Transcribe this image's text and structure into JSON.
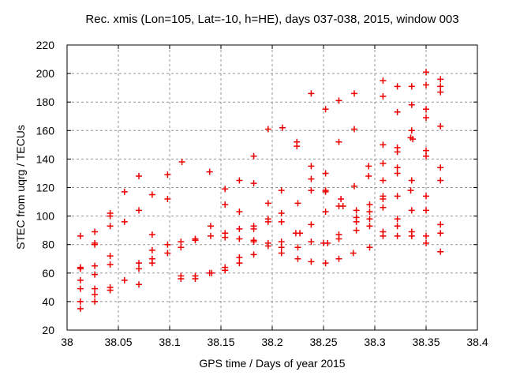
{
  "chart_data": {
    "type": "scatter",
    "title": "Rec. xmis (Lon=105, Lat=-10, h=HE), days 037-038, 2015, window 003",
    "xlabel": "GPS time / Days of year 2015",
    "ylabel": "STEC from uqrg / TECUs",
    "xlim": [
      38,
      38.4
    ],
    "ylim": [
      20,
      220
    ],
    "xtick_labels": [
      "38",
      "38.05",
      "38.1",
      "38.15",
      "38.2",
      "38.25",
      "38.3",
      "38.35",
      "38.4"
    ],
    "xtick_values": [
      38,
      38.05,
      38.1,
      38.15,
      38.2,
      38.25,
      38.3,
      38.35,
      38.4
    ],
    "ytick_labels": [
      "20",
      "40",
      "60",
      "80",
      "100",
      "120",
      "140",
      "160",
      "180",
      "200",
      "220"
    ],
    "ytick_values": [
      20,
      40,
      60,
      80,
      100,
      120,
      140,
      160,
      180,
      200,
      220
    ],
    "grid": true,
    "legend_position": "none",
    "marker_style": "plus",
    "colors": {
      "marker": "#ee0000",
      "grid": "#949494",
      "axis": "#000000",
      "text": "#000000",
      "background": "#ffffff"
    },
    "points": [
      [
        38.013,
        86
      ],
      [
        38.013,
        64
      ],
      [
        38.013,
        63
      ],
      [
        38.013,
        55
      ],
      [
        38.013,
        49
      ],
      [
        38.013,
        40
      ],
      [
        38.013,
        35
      ],
      [
        38.027,
        89
      ],
      [
        38.027,
        81
      ],
      [
        38.027,
        80
      ],
      [
        38.027,
        65
      ],
      [
        38.027,
        59
      ],
      [
        38.027,
        49
      ],
      [
        38.027,
        45
      ],
      [
        38.027,
        40
      ],
      [
        38.042,
        102
      ],
      [
        38.042,
        100
      ],
      [
        38.042,
        93
      ],
      [
        38.042,
        72
      ],
      [
        38.042,
        66
      ],
      [
        38.042,
        50
      ],
      [
        38.042,
        48
      ],
      [
        38.056,
        117
      ],
      [
        38.056,
        96
      ],
      [
        38.056,
        55
      ],
      [
        38.07,
        128
      ],
      [
        38.07,
        104
      ],
      [
        38.07,
        67
      ],
      [
        38.07,
        63
      ],
      [
        38.07,
        52
      ],
      [
        38.083,
        115
      ],
      [
        38.083,
        87
      ],
      [
        38.083,
        76
      ],
      [
        38.083,
        70
      ],
      [
        38.083,
        67
      ],
      [
        38.098,
        129
      ],
      [
        38.098,
        112
      ],
      [
        38.098,
        80
      ],
      [
        38.098,
        74
      ],
      [
        38.111,
        82
      ],
      [
        38.111,
        78
      ],
      [
        38.111,
        58
      ],
      [
        38.111,
        56
      ],
      [
        38.112,
        138
      ],
      [
        38.125,
        84
      ],
      [
        38.125,
        83
      ],
      [
        38.125,
        58
      ],
      [
        38.125,
        56
      ],
      [
        38.139,
        131
      ],
      [
        38.139,
        60
      ],
      [
        38.141,
        60
      ],
      [
        38.14,
        93
      ],
      [
        38.14,
        86
      ],
      [
        38.154,
        119
      ],
      [
        38.154,
        108
      ],
      [
        38.154,
        88
      ],
      [
        38.154,
        85
      ],
      [
        38.154,
        64
      ],
      [
        38.154,
        62
      ],
      [
        38.168,
        125
      ],
      [
        38.168,
        103
      ],
      [
        38.168,
        91
      ],
      [
        38.168,
        84
      ],
      [
        38.168,
        71
      ],
      [
        38.168,
        67
      ],
      [
        38.182,
        142
      ],
      [
        38.182,
        123
      ],
      [
        38.182,
        93
      ],
      [
        38.182,
        91
      ],
      [
        38.182,
        83
      ],
      [
        38.182,
        82
      ],
      [
        38.182,
        73
      ],
      [
        38.196,
        161
      ],
      [
        38.196,
        109
      ],
      [
        38.196,
        98
      ],
      [
        38.196,
        96
      ],
      [
        38.196,
        81
      ],
      [
        38.196,
        79
      ],
      [
        38.21,
        162
      ],
      [
        38.209,
        118
      ],
      [
        38.209,
        102
      ],
      [
        38.209,
        96
      ],
      [
        38.209,
        82
      ],
      [
        38.209,
        78
      ],
      [
        38.209,
        74
      ],
      [
        38.224,
        152
      ],
      [
        38.224,
        149
      ],
      [
        38.225,
        109
      ],
      [
        38.223,
        88
      ],
      [
        38.227,
        88
      ],
      [
        38.225,
        78
      ],
      [
        38.225,
        70
      ],
      [
        38.238,
        186
      ],
      [
        38.238,
        135
      ],
      [
        38.238,
        126
      ],
      [
        38.238,
        118
      ],
      [
        38.238,
        94
      ],
      [
        38.238,
        82
      ],
      [
        38.238,
        68
      ],
      [
        38.252,
        175
      ],
      [
        38.252,
        130
      ],
      [
        38.252,
        118
      ],
      [
        38.252,
        117
      ],
      [
        38.252,
        103
      ],
      [
        38.25,
        81
      ],
      [
        38.254,
        81
      ],
      [
        38.252,
        67
      ],
      [
        38.265,
        181
      ],
      [
        38.265,
        152
      ],
      [
        38.267,
        112
      ],
      [
        38.265,
        107
      ],
      [
        38.269,
        107
      ],
      [
        38.265,
        87
      ],
      [
        38.265,
        84
      ],
      [
        38.265,
        70
      ],
      [
        38.28,
        186
      ],
      [
        38.28,
        161
      ],
      [
        38.28,
        121
      ],
      [
        38.279,
        74
      ],
      [
        38.282,
        104
      ],
      [
        38.282,
        99
      ],
      [
        38.282,
        96
      ],
      [
        38.282,
        90
      ],
      [
        38.294,
        135
      ],
      [
        38.294,
        128
      ],
      [
        38.295,
        108
      ],
      [
        38.295,
        103
      ],
      [
        38.295,
        98
      ],
      [
        38.295,
        93
      ],
      [
        38.295,
        78
      ],
      [
        38.308,
        195
      ],
      [
        38.308,
        184
      ],
      [
        38.308,
        150
      ],
      [
        38.308,
        137
      ],
      [
        38.308,
        125
      ],
      [
        38.308,
        114
      ],
      [
        38.308,
        112
      ],
      [
        38.308,
        106
      ],
      [
        38.308,
        89
      ],
      [
        38.308,
        86
      ],
      [
        38.322,
        191
      ],
      [
        38.322,
        173
      ],
      [
        38.322,
        148
      ],
      [
        38.322,
        145
      ],
      [
        38.322,
        134
      ],
      [
        38.322,
        130
      ],
      [
        38.322,
        114
      ],
      [
        38.322,
        98
      ],
      [
        38.322,
        93
      ],
      [
        38.322,
        86
      ],
      [
        38.336,
        191
      ],
      [
        38.336,
        178
      ],
      [
        38.336,
        160
      ],
      [
        38.335,
        155
      ],
      [
        38.337,
        154
      ],
      [
        38.336,
        125
      ],
      [
        38.335,
        118
      ],
      [
        38.336,
        104
      ],
      [
        38.336,
        89
      ],
      [
        38.336,
        86
      ],
      [
        38.35,
        201
      ],
      [
        38.35,
        192
      ],
      [
        38.35,
        175
      ],
      [
        38.35,
        169
      ],
      [
        38.35,
        146
      ],
      [
        38.35,
        142
      ],
      [
        38.35,
        114
      ],
      [
        38.35,
        104
      ],
      [
        38.35,
        86
      ],
      [
        38.35,
        81
      ],
      [
        38.364,
        196
      ],
      [
        38.364,
        191
      ],
      [
        38.364,
        187
      ],
      [
        38.364,
        163
      ],
      [
        38.364,
        134
      ],
      [
        38.364,
        125
      ],
      [
        38.364,
        94
      ],
      [
        38.364,
        88
      ],
      [
        38.364,
        75
      ]
    ]
  }
}
